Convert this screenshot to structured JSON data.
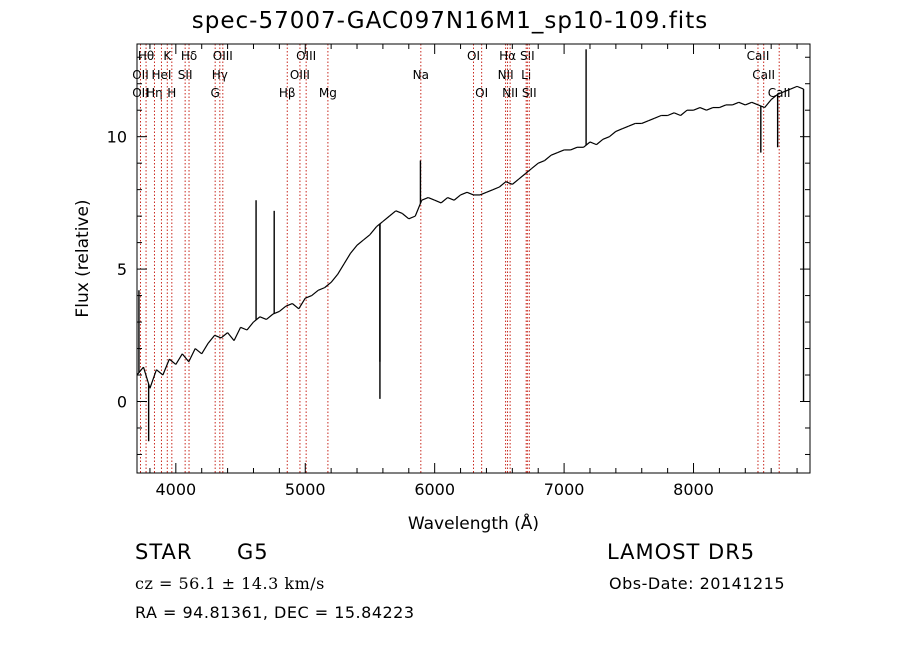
{
  "chart_data": {
    "type": "line",
    "title": "spec-57007-GAC097N16M1_sp10-109.fits",
    "xlabel": "Wavelength (Å)",
    "ylabel": "Flux (relative)",
    "xlim": [
      3700,
      8900
    ],
    "ylim": [
      -2.7,
      13.5
    ],
    "xticks": [
      4000,
      5000,
      6000,
      7000,
      8000
    ],
    "yticks": [
      0,
      5,
      10
    ],
    "series": [
      {
        "x": [
          3700,
          3750,
          3800,
          3850,
          3900,
          3950,
          4000,
          4050,
          4100,
          4150,
          4200,
          4250,
          4300,
          4350,
          4400,
          4450,
          4500,
          4550,
          4600,
          4650,
          4700,
          4750,
          4800,
          4850,
          4900,
          4950,
          5000,
          5050,
          5100,
          5150,
          5200,
          5250,
          5300,
          5350,
          5400,
          5450,
          5500,
          5550,
          5600,
          5650,
          5700,
          5750,
          5800,
          5850,
          5900,
          5950,
          6000,
          6050,
          6100,
          6150,
          6200,
          6250,
          6300,
          6350,
          6400,
          6450,
          6500,
          6550,
          6600,
          6650,
          6700,
          6750,
          6800,
          6850,
          6900,
          6950,
          7000,
          7050,
          7100,
          7150,
          7200,
          7250,
          7300,
          7350,
          7400,
          7450,
          7500,
          7550,
          7600,
          7650,
          7700,
          7750,
          7800,
          7850,
          7900,
          7950,
          8000,
          8050,
          8100,
          8150,
          8200,
          8250,
          8300,
          8350,
          8400,
          8450,
          8500,
          8550,
          8600,
          8650,
          8700,
          8750,
          8800,
          8850
        ],
        "y": [
          1.0,
          1.3,
          0.5,
          1.2,
          1.0,
          1.6,
          1.4,
          1.8,
          1.5,
          2.0,
          1.8,
          2.2,
          2.5,
          2.4,
          2.6,
          2.3,
          2.8,
          2.7,
          3.0,
          3.2,
          3.1,
          3.3,
          3.4,
          3.6,
          3.7,
          3.5,
          3.9,
          4.0,
          4.2,
          4.3,
          4.5,
          4.8,
          5.2,
          5.6,
          5.9,
          6.1,
          6.3,
          6.6,
          6.8,
          7.0,
          7.2,
          7.1,
          6.9,
          7.0,
          7.6,
          7.7,
          7.6,
          7.5,
          7.7,
          7.6,
          7.8,
          7.9,
          7.8,
          7.8,
          7.9,
          8.0,
          8.1,
          8.3,
          8.2,
          8.4,
          8.6,
          8.8,
          9.0,
          9.1,
          9.3,
          9.4,
          9.5,
          9.5,
          9.6,
          9.6,
          9.8,
          9.7,
          9.9,
          10.0,
          10.2,
          10.3,
          10.4,
          10.5,
          10.5,
          10.6,
          10.7,
          10.8,
          10.8,
          10.9,
          10.8,
          11.0,
          11.0,
          11.1,
          11.0,
          11.1,
          11.1,
          11.2,
          11.2,
          11.3,
          11.2,
          11.3,
          11.2,
          11.1,
          11.4,
          11.6,
          11.7,
          11.8,
          11.9,
          11.8
        ]
      }
    ],
    "spikes": [
      {
        "x": 3715,
        "y": 4.2
      },
      {
        "x": 3790,
        "y": -1.5
      },
      {
        "x": 4620,
        "y": 7.6
      },
      {
        "x": 4760,
        "y": 7.2
      },
      {
        "x": 5577,
        "y": 1.5
      },
      {
        "x": 5577,
        "y": 0.1
      },
      {
        "x": 5890,
        "y": 9.1
      },
      {
        "x": 7170,
        "y": 13.3
      },
      {
        "x": 8520,
        "y": 9.4
      },
      {
        "x": 8650,
        "y": 9.6
      },
      {
        "x": 8850,
        "y": 0.0
      }
    ],
    "line_markers": [
      {
        "x": 3727,
        "label": "OII",
        "row": 1,
        "offset": 0
      },
      {
        "x": 3727,
        "label": "OII",
        "row": 2,
        "offset": 0
      },
      {
        "x": 3770,
        "label": "Hθ",
        "row": 0,
        "offset": 0
      },
      {
        "x": 3835,
        "label": "Hη",
        "row": 2,
        "offset": 0
      },
      {
        "x": 3889,
        "label": "HeI",
        "row": 1,
        "offset": 0
      },
      {
        "x": 3934,
        "label": "K",
        "row": 0,
        "offset": 0
      },
      {
        "x": 3969,
        "label": "H",
        "row": 2,
        "offset": 0
      },
      {
        "x": 4072,
        "label": "SII",
        "row": 1,
        "offset": 0
      },
      {
        "x": 4102,
        "label": "Hδ",
        "row": 0,
        "offset": 0
      },
      {
        "x": 4304,
        "label": "G",
        "row": 2,
        "offset": 0
      },
      {
        "x": 4340,
        "label": "Hγ",
        "row": 1,
        "offset": 0
      },
      {
        "x": 4363,
        "label": "OIII",
        "row": 0,
        "offset": 0
      },
      {
        "x": 4861,
        "label": "Hβ",
        "row": 2,
        "offset": 0
      },
      {
        "x": 4959,
        "label": "OIII",
        "row": 1,
        "offset": 0
      },
      {
        "x": 5007,
        "label": "OIII",
        "row": 0,
        "offset": 0
      },
      {
        "x": 5175,
        "label": "Mg",
        "row": 2,
        "offset": 0
      },
      {
        "x": 5893,
        "label": "Na",
        "row": 1,
        "offset": 0
      },
      {
        "x": 6300,
        "label": "OI",
        "row": 0,
        "offset": 0
      },
      {
        "x": 6363,
        "label": "OI",
        "row": 2,
        "offset": 0
      },
      {
        "x": 6548,
        "label": "NII",
        "row": 1,
        "offset": 0
      },
      {
        "x": 6563,
        "label": "Hα",
        "row": 0,
        "offset": 0
      },
      {
        "x": 6583,
        "label": "NII",
        "row": 2,
        "offset": 0
      },
      {
        "x": 6707,
        "label": "Li",
        "row": 1,
        "offset": 0
      },
      {
        "x": 6716,
        "label": "SII",
        "row": 0,
        "offset": 0
      },
      {
        "x": 6731,
        "label": "SII",
        "row": 2,
        "offset": 0
      },
      {
        "x": 8498,
        "label": "CaII",
        "row": 0,
        "offset": 0
      },
      {
        "x": 8542,
        "label": "CaII",
        "row": 1,
        "offset": 0
      },
      {
        "x": 8662,
        "label": "CaII",
        "row": 2,
        "offset": 0
      }
    ],
    "marker_color": "#c8281e",
    "line_color": "#000000",
    "grid": false,
    "legend": "none"
  },
  "info": {
    "class_label": "STAR",
    "subclass_label": "G5",
    "survey_label": "LAMOST DR5",
    "redshift_text": "cz = 56.1 ± 14.3 km/s",
    "obs_date_text": "Obs-Date: 20141215",
    "coords_text": "RA =  94.81361, DEC =  15.84223"
  }
}
